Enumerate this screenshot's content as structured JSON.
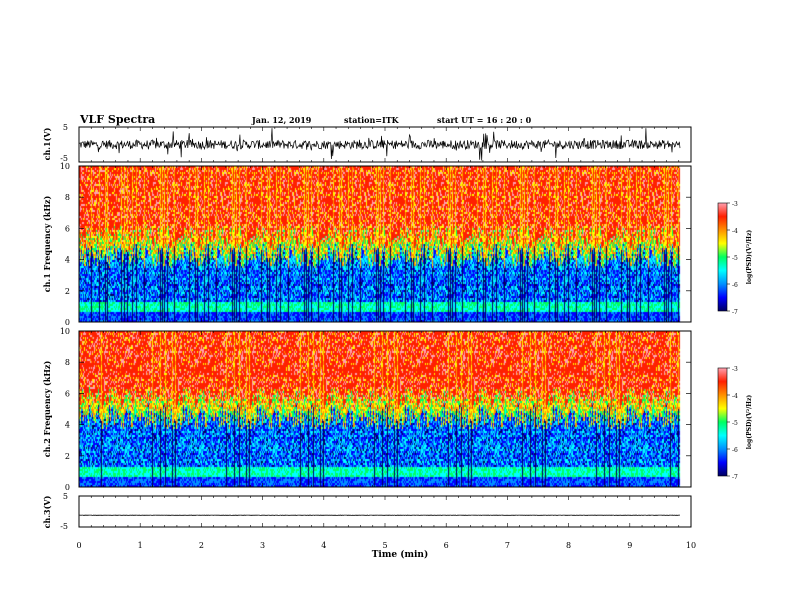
{
  "header": {
    "title": "VLF Spectra",
    "date": "Jan. 12, 2019",
    "station": "station=ITK",
    "start": "start UT = 16 : 20 : 0"
  },
  "chart_data": [
    {
      "type": "line",
      "name": "waveform-ch1",
      "ylabel": "ch.1(V)",
      "ylim": [
        -5,
        5
      ],
      "yticks": [
        "5",
        "-5"
      ],
      "xlim": [
        0,
        10
      ],
      "baseline": 0,
      "noise_amplitude": 1.3
    },
    {
      "type": "heatmap",
      "name": "spectrogram-ch1",
      "ylabel": "ch.1 Frequency (kHz)",
      "ylim": [
        0,
        10
      ],
      "yticks": [
        "0",
        "2",
        "4",
        "6",
        "8",
        "10"
      ],
      "xlim": [
        0,
        10
      ],
      "colorbar": {
        "label": "log(PSD)(V²/Hz)",
        "range": [
          -7,
          -3
        ],
        "ticks": [
          "-3",
          "-4",
          "-5",
          "-6",
          "-7"
        ]
      },
      "colors": [
        "#000060",
        "#0000ff",
        "#0090ff",
        "#00ffff",
        "#00ff60",
        "#ffff00",
        "#ff9000",
        "#ff2000",
        "#ffa0b0"
      ],
      "band_edge_khz": 4.3
    },
    {
      "type": "heatmap",
      "name": "spectrogram-ch2",
      "ylabel": "ch.2 Frequency (kHz)",
      "ylim": [
        0,
        10
      ],
      "yticks": [
        "0",
        "2",
        "4",
        "6",
        "8",
        "10"
      ],
      "xlim": [
        0,
        10
      ],
      "colorbar": {
        "label": "log(PSD)(V²/Hz)",
        "range": [
          -7,
          -3
        ],
        "ticks": [
          "-3",
          "-4",
          "-5",
          "-6",
          "-7"
        ]
      },
      "colors": [
        "#000060",
        "#0000ff",
        "#0090ff",
        "#00ffff",
        "#00ff60",
        "#ffff00",
        "#ff9000",
        "#ff2000",
        "#ffa0b0"
      ],
      "band_edge_khz": 4.6
    },
    {
      "type": "line",
      "name": "waveform-ch3",
      "ylabel": "ch.3(V)",
      "ylim": [
        -5,
        5
      ],
      "yticks": [
        "5",
        "-5"
      ],
      "xlim": [
        0,
        10
      ],
      "baseline": -1.2,
      "noise_amplitude": 0.05
    }
  ],
  "x_axis": {
    "label": "Time (min)",
    "ticks": [
      "0",
      "1",
      "2",
      "3",
      "4",
      "5",
      "6",
      "7",
      "8",
      "9",
      "10"
    ]
  }
}
